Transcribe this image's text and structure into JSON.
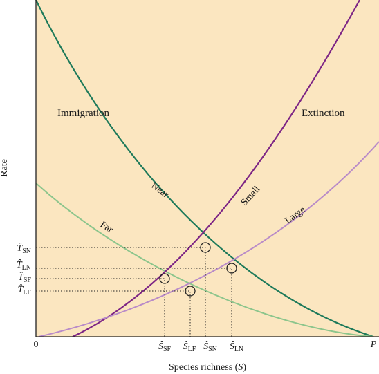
{
  "colors": {
    "background": "#fbe6c0",
    "immigration_near": "#1e7a5a",
    "immigration_far": "#8cc58c",
    "extinction_small": "#7d2585",
    "extinction_large": "#b98bc8",
    "axis": "#222222"
  },
  "labels": {
    "y_axis": "Rate",
    "x_axis": "Species richness (",
    "x_axis_var": "S",
    "x_axis_close": ")",
    "origin": "0",
    "pool": "P",
    "immigration": "Immigration",
    "extinction": "Extinction",
    "near": "Near",
    "far": "Far",
    "small": "Small",
    "large": "Large"
  },
  "rate_ticks": [
    {
      "base": "T̂",
      "sub": "SN"
    },
    {
      "base": "T̂",
      "sub": "LN"
    },
    {
      "base": "T̂",
      "sub": "SF"
    },
    {
      "base": "T̂",
      "sub": "LF"
    }
  ],
  "richness_ticks": [
    {
      "base": "Ŝ",
      "sub": "SF"
    },
    {
      "base": "Ŝ",
      "sub": "LF"
    },
    {
      "base": "Ŝ",
      "sub": "SN"
    },
    {
      "base": "Ŝ",
      "sub": "LN"
    }
  ]
}
